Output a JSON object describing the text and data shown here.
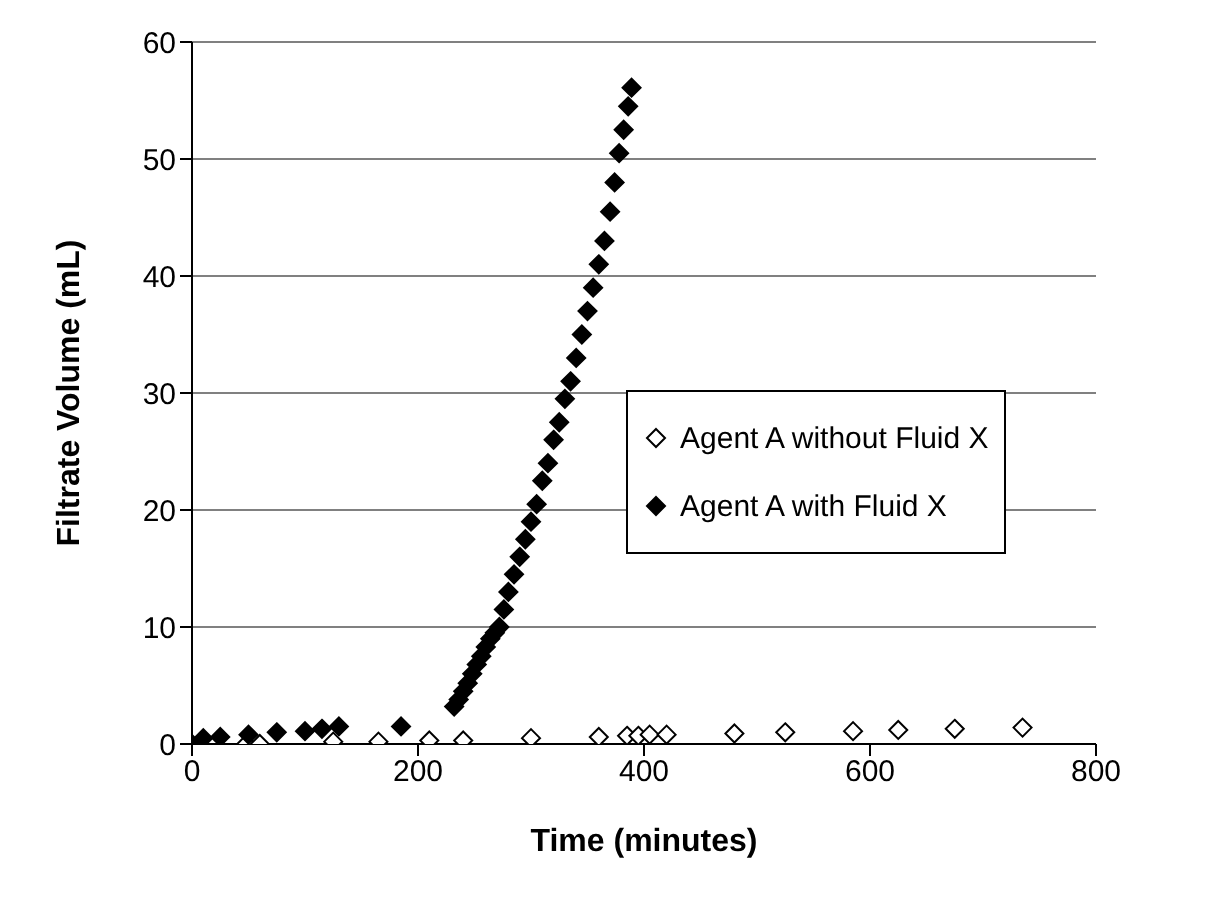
{
  "chart_data": {
    "type": "scatter",
    "xlabel": "Time (minutes)",
    "ylabel": "Filtrate Volume (mL)",
    "xlim": [
      0,
      800
    ],
    "xticks": [
      0,
      200,
      400,
      600,
      800
    ],
    "ylim": [
      0,
      60
    ],
    "yticks": [
      0,
      10,
      20,
      30,
      40,
      50,
      60
    ],
    "grid": "y",
    "legend": "right",
    "marker": "diamond",
    "series": [
      {
        "name": "Agent A without Fluid X",
        "color": "#ffffff",
        "x": [
          48,
          60,
          125,
          165,
          210,
          240,
          300,
          360,
          385,
          395,
          405,
          420,
          480,
          525,
          585,
          625,
          675,
          735
        ],
        "values": [
          0,
          0,
          0.2,
          0.2,
          0.3,
          0.3,
          0.5,
          0.6,
          0.7,
          0.7,
          0.8,
          0.8,
          0.9,
          1.0,
          1.1,
          1.2,
          1.3,
          1.4
        ]
      },
      {
        "name": "Agent A with Fluid X",
        "color": "#000000",
        "x": [
          0,
          10,
          25,
          50,
          75,
          100,
          115,
          130,
          185,
          232,
          236,
          240,
          244,
          248,
          252,
          256,
          260,
          264,
          268,
          272,
          276,
          280,
          285,
          290,
          295,
          300,
          305,
          310,
          315,
          320,
          325,
          330,
          335,
          340,
          345,
          350,
          355,
          360,
          365,
          370,
          374,
          378,
          382,
          386,
          389
        ],
        "values": [
          0,
          0.5,
          0.6,
          0.8,
          1.0,
          1.1,
          1.3,
          1.5,
          1.5,
          3.2,
          3.8,
          4.5,
          5.2,
          6,
          6.8,
          7.5,
          8.3,
          9,
          9.5,
          10,
          11.5,
          13,
          14.5,
          16,
          17.5,
          19,
          20.5,
          22.5,
          24,
          26,
          27.5,
          29.5,
          31,
          33,
          35,
          37,
          39,
          41,
          43,
          45.5,
          48,
          50.5,
          52.5,
          54.5,
          56.1
        ]
      }
    ]
  }
}
